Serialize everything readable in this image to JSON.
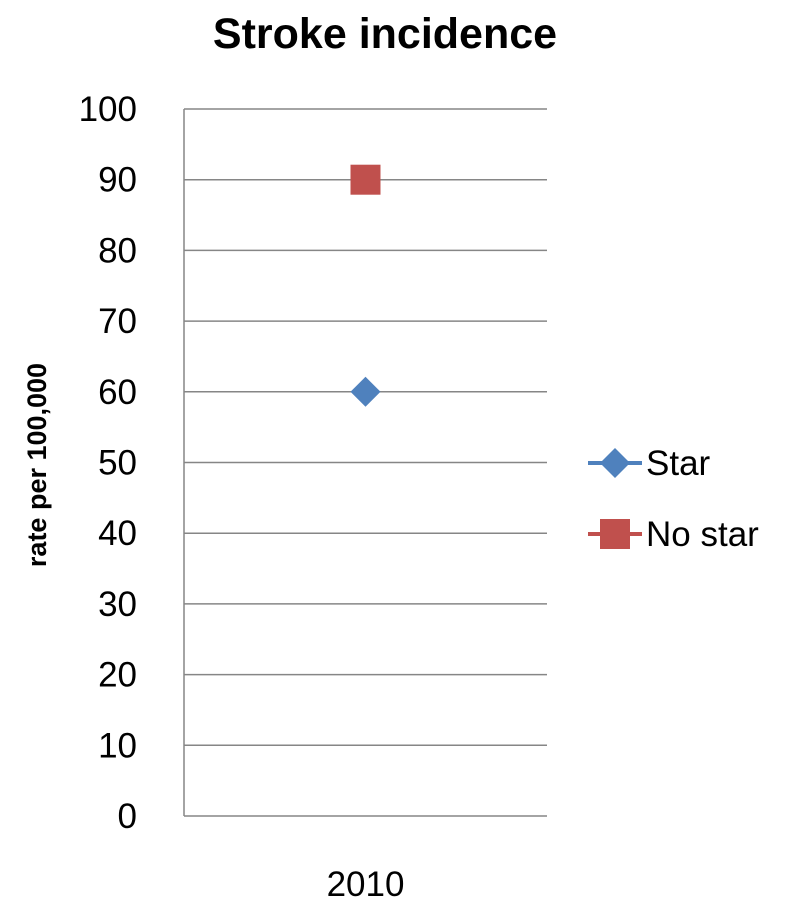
{
  "chart_data": {
    "type": "line",
    "title": "Stroke incidence",
    "xlabel": "",
    "ylabel": "rate per 100,000",
    "categories": [
      "2010"
    ],
    "ylim": [
      0,
      100
    ],
    "yticks": [
      0,
      10,
      20,
      30,
      40,
      50,
      60,
      70,
      80,
      90,
      100
    ],
    "grid": true,
    "legend_position": "right",
    "series": [
      {
        "name": "Star",
        "values": [
          60
        ],
        "marker": "diamond",
        "color": "#4F81BD"
      },
      {
        "name": "No star",
        "values": [
          90
        ],
        "marker": "square",
        "color": "#C0504D"
      }
    ]
  }
}
